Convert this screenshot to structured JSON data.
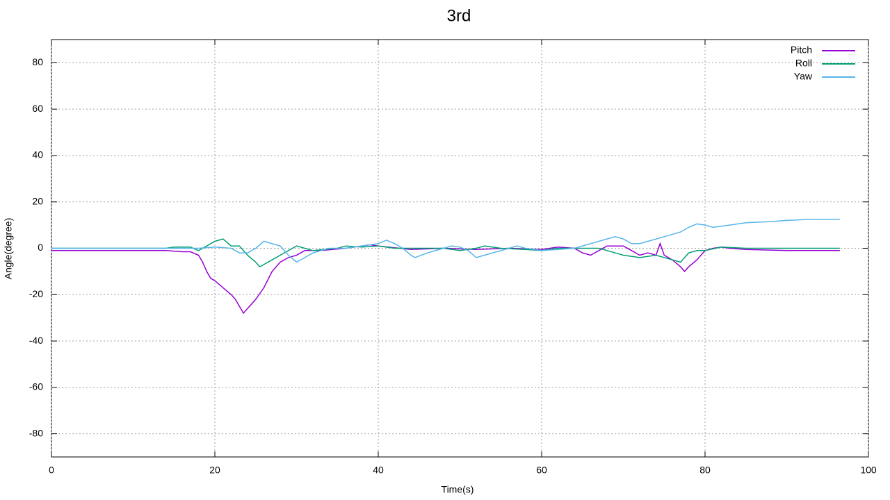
{
  "chart_data": {
    "type": "line",
    "title": "3rd",
    "x_label": "Time(s)",
    "y_label": "Angle(degree)",
    "xlim": [
      0,
      100
    ],
    "xticks": [
      0,
      20,
      40,
      60,
      80,
      100
    ],
    "ylim": [
      -90,
      90
    ],
    "yticks": [
      -80,
      -60,
      -40,
      -20,
      0,
      20,
      40,
      60,
      80
    ],
    "grid": true,
    "legend": "top-right",
    "series": [
      {
        "name": "Pitch",
        "color": "#9400d3",
        "x": [
          0,
          14,
          16,
          17,
          18,
          18.5,
          19,
          19.5,
          20,
          21,
          22,
          22.5,
          23,
          23.5,
          24,
          25,
          26,
          27,
          28,
          29,
          30,
          31,
          33,
          36,
          38,
          39,
          40,
          44,
          48,
          52,
          56,
          60,
          62,
          64,
          65,
          66,
          67,
          68,
          70,
          71,
          72,
          73,
          74,
          74.5,
          75,
          76,
          77,
          77.5,
          78,
          79,
          80,
          81,
          82,
          83,
          85,
          90,
          96.5
        ],
        "values": [
          -1,
          -1,
          -1.5,
          -1.5,
          -3,
          -6,
          -10,
          -13,
          -14,
          -17,
          -20,
          -22,
          -25,
          -28,
          -26,
          -22,
          -17,
          -10,
          -6,
          -4,
          -3,
          -1,
          -1,
          0,
          1,
          1.5,
          1,
          -0.5,
          0,
          -0.5,
          0,
          -0.5,
          0.5,
          0,
          -2,
          -3,
          -1,
          1,
          1,
          -1,
          -3,
          -2,
          -3,
          2,
          -3,
          -5,
          -8,
          -10,
          -8,
          -5,
          -1,
          0,
          0.5,
          0,
          -0.5,
          -1,
          -1
        ]
      },
      {
        "name": "Roll",
        "color": "#009e73",
        "x": [
          0,
          14,
          15,
          17,
          18,
          19,
          20,
          21,
          22,
          23,
          24,
          25,
          25.5,
          26,
          27,
          28,
          29,
          30,
          31,
          32,
          35,
          36,
          38,
          40,
          42,
          45,
          48,
          50,
          52,
          53,
          55,
          58,
          60,
          62,
          65,
          67,
          68,
          70,
          72,
          74,
          76,
          77,
          78,
          79,
          80,
          82,
          85,
          96.5
        ],
        "values": [
          0,
          0,
          0.5,
          0.5,
          -1,
          1,
          3,
          4,
          1,
          1,
          -3,
          -6,
          -8,
          -7,
          -5,
          -3,
          -1,
          1,
          0,
          -1,
          0,
          1,
          0.5,
          1,
          0,
          0,
          0,
          -1,
          0,
          1,
          0,
          -0.5,
          -1,
          0,
          0,
          0,
          -1,
          -3,
          -4,
          -3,
          -5,
          -6,
          -2,
          -1,
          -1,
          0.5,
          0,
          0
        ]
      },
      {
        "name": "Yaw",
        "color": "#56b4e9",
        "x": [
          0,
          18,
          20,
          22,
          23,
          24,
          25,
          26,
          27,
          28,
          29,
          30,
          31,
          32,
          33,
          34,
          36,
          38,
          40,
          41,
          42,
          43,
          44,
          44.5,
          46,
          48,
          49,
          50,
          51,
          52,
          53,
          55,
          57,
          58,
          60,
          62,
          64,
          66,
          68,
          69,
          70,
          71,
          72,
          73,
          75,
          77,
          78,
          79,
          80,
          81,
          83,
          85,
          88,
          90,
          93,
          96.5
        ],
        "values": [
          0,
          0,
          0.5,
          0,
          -2,
          -2,
          0,
          3,
          2,
          1,
          -3,
          -6,
          -4,
          -2,
          -1,
          0,
          0,
          1,
          2,
          3.5,
          2,
          0,
          -3,
          -4,
          -2,
          0,
          1,
          0.5,
          -1,
          -4,
          -3,
          -1,
          1,
          0,
          -1,
          -0.5,
          0,
          2,
          4,
          5,
          4,
          2,
          2,
          3,
          5,
          7,
          9,
          10.5,
          10,
          9,
          10,
          11,
          11.5,
          12,
          12.5,
          12.5
        ]
      }
    ]
  }
}
